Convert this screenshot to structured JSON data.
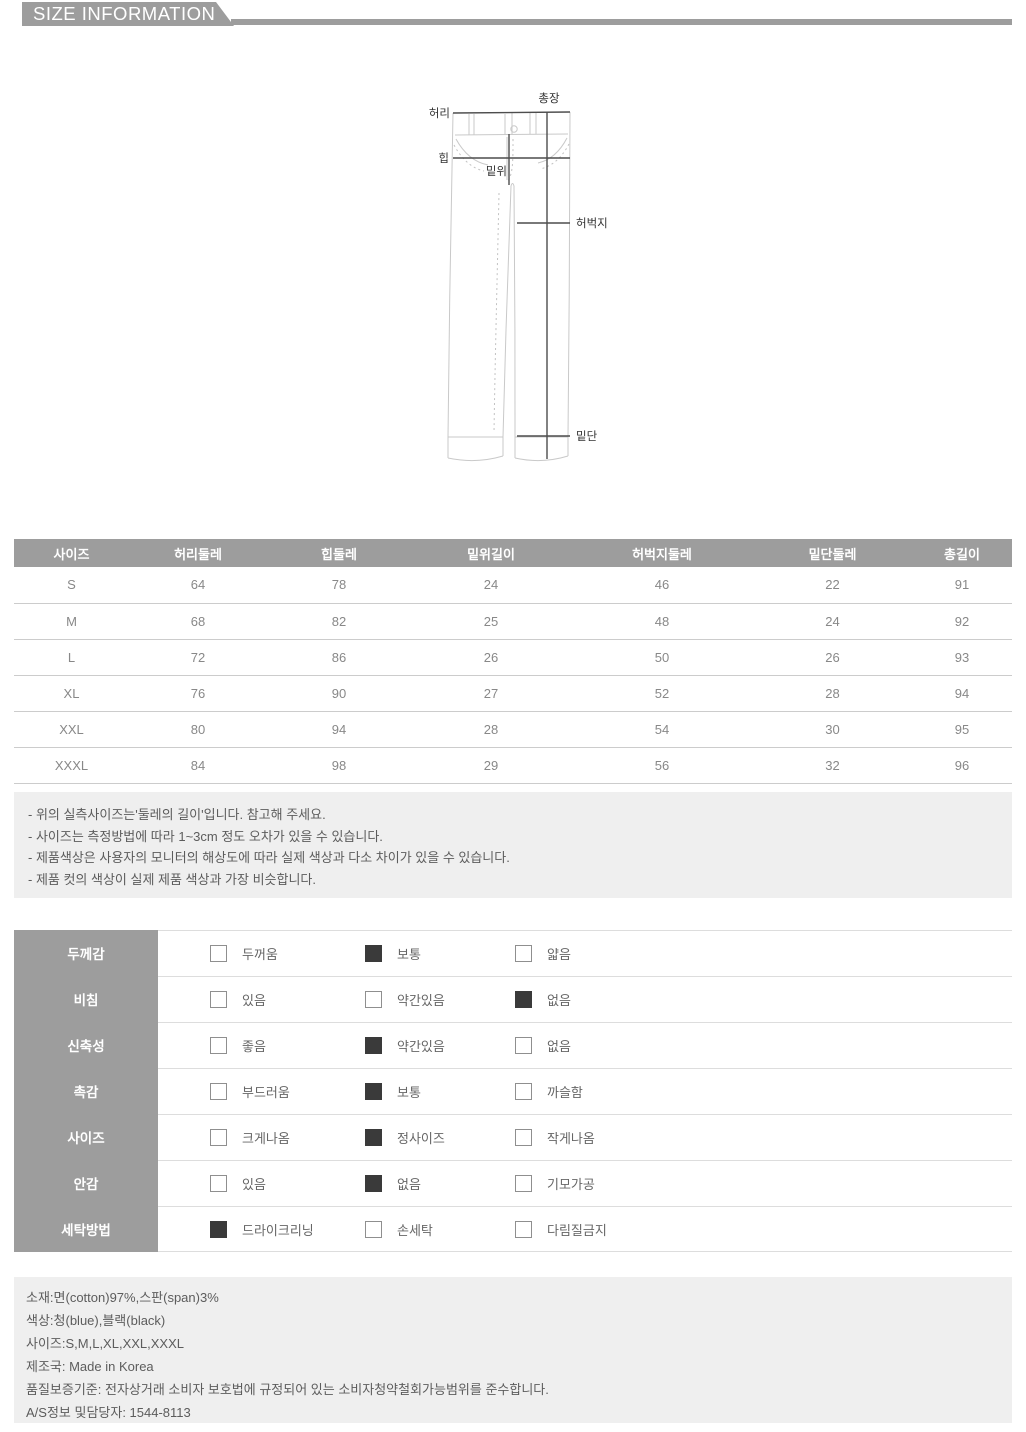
{
  "header": {
    "title": "SIZE INFORMATION"
  },
  "colors": {
    "accent_gray": "#9d9d9d",
    "box_gray": "#efefef",
    "checked_fill": "#3a3a3a",
    "diagram_line": "#c9c9c9",
    "measure_line": "#4d4d4d"
  },
  "diagram": {
    "labels": {
      "waist": "허리",
      "total_length": "총장",
      "hip": "힙",
      "rise": "밑위",
      "thigh": "허벅지",
      "hem": "밑단"
    }
  },
  "size_table": {
    "columns": [
      "사이즈",
      "허리둘레",
      "힙둘레",
      "밑위길이",
      "허벅지둘레",
      "밑단둘레",
      "총길이"
    ],
    "rows": [
      [
        "S",
        "64",
        "78",
        "24",
        "46",
        "22",
        "91"
      ],
      [
        "M",
        "68",
        "82",
        "25",
        "48",
        "24",
        "92"
      ],
      [
        "L",
        "72",
        "86",
        "26",
        "50",
        "26",
        "93"
      ],
      [
        "XL",
        "76",
        "90",
        "27",
        "52",
        "28",
        "94"
      ],
      [
        "XXL",
        "80",
        "94",
        "28",
        "54",
        "30",
        "95"
      ],
      [
        "XXXL",
        "84",
        "98",
        "29",
        "56",
        "32",
        "96"
      ]
    ]
  },
  "notes": [
    "- 위의 실측사이즈는'둘레의 길이'입니다. 참고해 주세요.",
    "- 사이즈는 측정방법에 따라 1~3cm 정도 오차가 있을 수 있습니다.",
    "- 제품색상은 사용자의 모니터의 해상도에 따라 실제 색상과 다소 차이가 있을 수 있습니다.",
    "- 제품 컷의 색상이 실제 제품 색상과 가장 비슷합니다."
  ],
  "properties": [
    {
      "label": "두께감",
      "options": [
        {
          "text": "두꺼움",
          "checked": false
        },
        {
          "text": "보통",
          "checked": true
        },
        {
          "text": "얇음",
          "checked": false
        }
      ]
    },
    {
      "label": "비침",
      "options": [
        {
          "text": "있음",
          "checked": false
        },
        {
          "text": "약간있음",
          "checked": false
        },
        {
          "text": "없음",
          "checked": true
        }
      ]
    },
    {
      "label": "신축성",
      "options": [
        {
          "text": "좋음",
          "checked": false
        },
        {
          "text": "약간있음",
          "checked": true
        },
        {
          "text": "없음",
          "checked": false
        }
      ]
    },
    {
      "label": "촉감",
      "options": [
        {
          "text": "부드러움",
          "checked": false
        },
        {
          "text": "보통",
          "checked": true
        },
        {
          "text": "까슬함",
          "checked": false
        }
      ]
    },
    {
      "label": "사이즈",
      "options": [
        {
          "text": "크게나옴",
          "checked": false
        },
        {
          "text": "정사이즈",
          "checked": true
        },
        {
          "text": "작게나옴",
          "checked": false
        }
      ]
    },
    {
      "label": "안감",
      "options": [
        {
          "text": "있음",
          "checked": false
        },
        {
          "text": "없음",
          "checked": true
        },
        {
          "text": "기모가공",
          "checked": false
        }
      ]
    },
    {
      "label": "세탁방법",
      "options": [
        {
          "text": "드라이크리닝",
          "checked": true
        },
        {
          "text": "손세탁",
          "checked": false
        },
        {
          "text": "다림질금지",
          "checked": false
        }
      ]
    }
  ],
  "product_info": [
    "소재:면(cotton)97%,스판(span)3%",
    "색상:청(blue),블랙(black)",
    "사이즈:S,M,L,XL,XXL,XXXL",
    "제조국: Made in Korea",
    "품질보증기준: 전자상거래 소비자 보호법에 규정되어 있는 소비자청약철회가능범위를 준수합니다.",
    "A/S정보 및담당자: 1544-8113"
  ]
}
